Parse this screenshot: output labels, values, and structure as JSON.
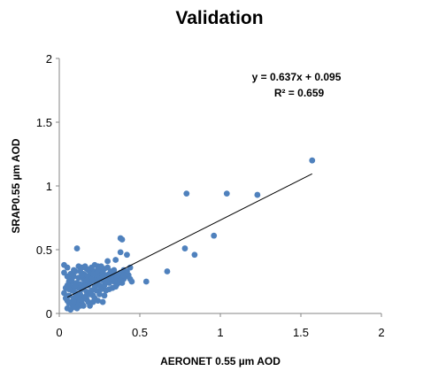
{
  "chart_data": {
    "type": "scatter",
    "title": "Validation",
    "xlabel": "AERONET 0.55 µm AOD",
    "ylabel": "SRAP0.55 µm AOD",
    "xlim": [
      0,
      2
    ],
    "ylim": [
      0,
      2
    ],
    "xticks": [
      "0",
      "0.5",
      "1",
      "1.5",
      "2"
    ],
    "yticks": [
      "0",
      "0.5",
      "1",
      "1.5",
      "2"
    ],
    "grid": false,
    "legend": "none",
    "point_color": "#4f81bd",
    "line_color": "#000000",
    "equation": "y = 0.637x + 0.095",
    "r_squared": "R² = 0.659",
    "trendline": {
      "slope": 0.637,
      "intercept": 0.095,
      "x_start": 0.05,
      "x_end": 1.57
    },
    "points": [
      [
        1.57,
        1.2
      ],
      [
        1.23,
        0.93
      ],
      [
        1.04,
        0.94
      ],
      [
        0.79,
        0.94
      ],
      [
        0.96,
        0.61
      ],
      [
        0.78,
        0.51
      ],
      [
        0.84,
        0.46
      ],
      [
        0.67,
        0.33
      ],
      [
        0.54,
        0.25
      ],
      [
        0.38,
        0.59
      ],
      [
        0.39,
        0.58
      ],
      [
        0.38,
        0.48
      ],
      [
        0.42,
        0.46
      ],
      [
        0.35,
        0.42
      ],
      [
        0.11,
        0.51
      ],
      [
        0.03,
        0.38
      ],
      [
        0.05,
        0.36
      ],
      [
        0.03,
        0.32
      ],
      [
        0.44,
        0.36
      ],
      [
        0.43,
        0.3
      ],
      [
        0.45,
        0.25
      ],
      [
        0.4,
        0.34
      ],
      [
        0.38,
        0.28
      ],
      [
        0.36,
        0.23
      ],
      [
        0.33,
        0.27
      ],
      [
        0.3,
        0.41
      ],
      [
        0.28,
        0.35
      ],
      [
        0.26,
        0.3
      ],
      [
        0.25,
        0.22
      ],
      [
        0.24,
        0.37
      ],
      [
        0.22,
        0.33
      ],
      [
        0.21,
        0.26
      ],
      [
        0.2,
        0.18
      ],
      [
        0.19,
        0.3
      ],
      [
        0.18,
        0.22
      ],
      [
        0.17,
        0.35
      ],
      [
        0.16,
        0.13
      ],
      [
        0.15,
        0.27
      ],
      [
        0.14,
        0.19
      ],
      [
        0.13,
        0.33
      ],
      [
        0.12,
        0.1
      ],
      [
        0.11,
        0.24
      ],
      [
        0.1,
        0.16
      ],
      [
        0.09,
        0.29
      ],
      [
        0.08,
        0.07
      ],
      [
        0.07,
        0.21
      ],
      [
        0.06,
        0.14
      ],
      [
        0.05,
        0.04
      ],
      [
        0.06,
        0.25
      ],
      [
        0.07,
        0.09
      ],
      [
        0.08,
        0.18
      ],
      [
        0.09,
        0.12
      ],
      [
        0.1,
        0.05
      ],
      [
        0.12,
        0.2
      ],
      [
        0.13,
        0.15
      ],
      [
        0.14,
        0.08
      ],
      [
        0.15,
        0.31
      ],
      [
        0.16,
        0.24
      ],
      [
        0.17,
        0.11
      ],
      [
        0.18,
        0.28
      ],
      [
        0.19,
        0.06
      ],
      [
        0.2,
        0.34
      ],
      [
        0.21,
        0.14
      ],
      [
        0.22,
        0.21
      ],
      [
        0.23,
        0.29
      ],
      [
        0.24,
        0.1
      ],
      [
        0.25,
        0.32
      ],
      [
        0.26,
        0.19
      ],
      [
        0.27,
        0.26
      ],
      [
        0.28,
        0.14
      ],
      [
        0.29,
        0.3
      ],
      [
        0.31,
        0.24
      ],
      [
        0.32,
        0.33
      ],
      [
        0.34,
        0.29
      ],
      [
        0.35,
        0.21
      ],
      [
        0.37,
        0.31
      ],
      [
        0.39,
        0.24
      ],
      [
        0.41,
        0.29
      ],
      [
        0.04,
        0.12
      ],
      [
        0.04,
        0.2
      ],
      [
        0.05,
        0.29
      ],
      [
        0.06,
        0.08
      ],
      [
        0.07,
        0.31
      ],
      [
        0.08,
        0.25
      ],
      [
        0.09,
        0.2
      ],
      [
        0.1,
        0.33
      ],
      [
        0.11,
        0.08
      ],
      [
        0.12,
        0.28
      ],
      [
        0.13,
        0.23
      ],
      [
        0.14,
        0.36
      ],
      [
        0.15,
        0.12
      ],
      [
        0.16,
        0.3
      ],
      [
        0.17,
        0.17
      ],
      [
        0.18,
        0.09
      ],
      [
        0.19,
        0.24
      ],
      [
        0.2,
        0.27
      ],
      [
        0.21,
        0.31
      ],
      [
        0.22,
        0.12
      ],
      [
        0.23,
        0.18
      ],
      [
        0.24,
        0.26
      ],
      [
        0.25,
        0.15
      ],
      [
        0.26,
        0.35
      ],
      [
        0.27,
        0.09
      ],
      [
        0.28,
        0.22
      ],
      [
        0.29,
        0.18
      ],
      [
        0.3,
        0.28
      ],
      [
        0.31,
        0.31
      ],
      [
        0.33,
        0.2
      ],
      [
        0.34,
        0.25
      ],
      [
        0.36,
        0.27
      ],
      [
        0.37,
        0.25
      ],
      [
        0.38,
        0.32
      ],
      [
        0.4,
        0.27
      ],
      [
        0.42,
        0.33
      ],
      [
        0.44,
        0.27
      ],
      [
        0.03,
        0.16
      ],
      [
        0.05,
        0.1
      ],
      [
        0.06,
        0.19
      ],
      [
        0.08,
        0.3
      ],
      [
        0.09,
        0.05
      ],
      [
        0.11,
        0.13
      ],
      [
        0.13,
        0.06
      ],
      [
        0.15,
        0.2
      ],
      [
        0.17,
        0.26
      ],
      [
        0.19,
        0.15
      ],
      [
        0.21,
        0.09
      ],
      [
        0.23,
        0.24
      ],
      [
        0.25,
        0.27
      ],
      [
        0.27,
        0.32
      ],
      [
        0.29,
        0.25
      ],
      [
        0.31,
        0.19
      ],
      [
        0.33,
        0.31
      ],
      [
        0.35,
        0.26
      ],
      [
        0.12,
        0.37
      ],
      [
        0.14,
        0.3
      ],
      [
        0.16,
        0.37
      ],
      [
        0.18,
        0.34
      ],
      [
        0.2,
        0.36
      ],
      [
        0.22,
        0.38
      ],
      [
        0.24,
        0.34
      ],
      [
        0.26,
        0.37
      ],
      [
        0.28,
        0.29
      ],
      [
        0.3,
        0.36
      ],
      [
        0.32,
        0.28
      ],
      [
        0.34,
        0.34
      ],
      [
        0.36,
        0.3
      ],
      [
        0.38,
        0.26
      ],
      [
        0.4,
        0.3
      ],
      [
        0.07,
        0.03
      ],
      [
        0.09,
        0.09
      ],
      [
        0.11,
        0.04
      ],
      [
        0.13,
        0.11
      ],
      [
        0.15,
        0.06
      ],
      [
        0.17,
        0.14
      ],
      [
        0.05,
        0.22
      ],
      [
        0.07,
        0.26
      ],
      [
        0.09,
        0.34
      ],
      [
        0.1,
        0.22
      ]
    ]
  }
}
